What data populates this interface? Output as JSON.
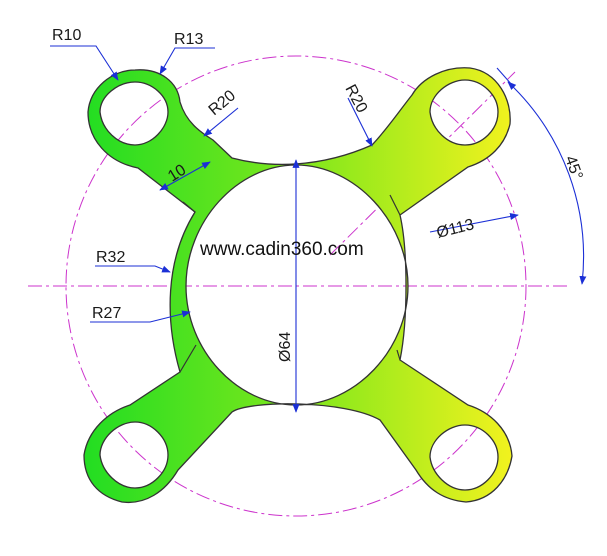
{
  "watermark": "www.cadin360.com",
  "dimensions": {
    "r10": "R10",
    "r13": "R13",
    "r20_left": "R20",
    "r20_right": "R20",
    "width_10": "10",
    "r32": "R32",
    "r27": "R27",
    "dia113": "Ø113",
    "dia64": "Ø64",
    "angle45": "45°"
  },
  "colors": {
    "part_left": "#22dd22",
    "part_right": "#f0f020",
    "outline": "#333333",
    "dimension": "#1b2fd6",
    "centerline": "#cc33cc",
    "text": "#1a1a1a"
  }
}
